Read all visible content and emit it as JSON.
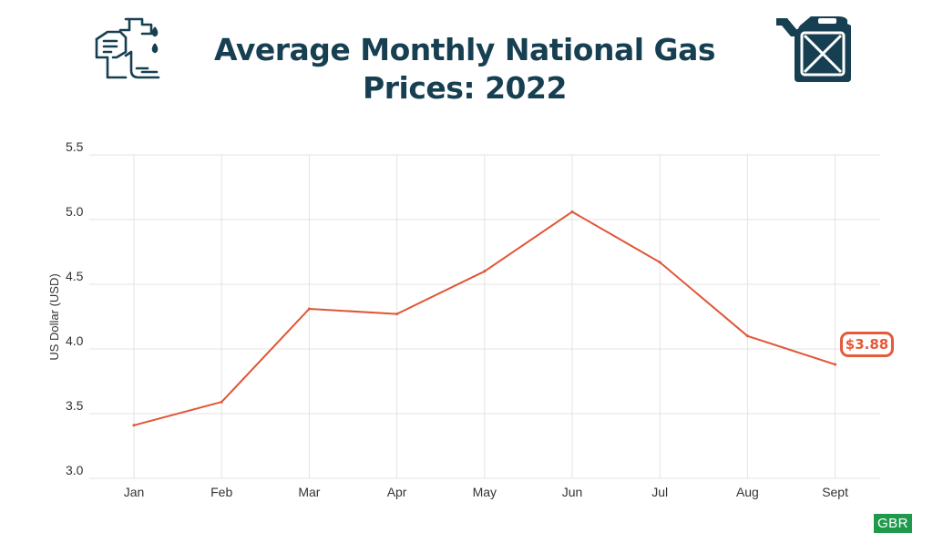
{
  "header": {
    "title_line1": "Average Monthly National Gas",
    "title_line2": "Prices: 2022",
    "left_icon": "gas-pump-icon",
    "right_icon": "jerry-can-icon"
  },
  "colors": {
    "title": "#173f52",
    "line": "#e05636",
    "grid": "#e3e3e3",
    "axis_text": "#333333",
    "logo_bg": "#1f9a4c"
  },
  "chart_data": {
    "type": "line",
    "title": "Average Monthly National Gas Prices: 2022",
    "xlabel": "",
    "ylabel": "US Dollar (USD)",
    "categories": [
      "Jan",
      "Feb",
      "Mar",
      "Apr",
      "May",
      "Jun",
      "Jul",
      "Aug",
      "Sept"
    ],
    "series": [
      {
        "values": [
          3.41,
          3.59,
          4.31,
          4.27,
          4.6,
          5.06,
          4.67,
          4.1,
          3.88
        ]
      }
    ],
    "ylim": [
      3.0,
      5.5
    ],
    "yticks": [
      "3.0",
      "3.5",
      "4.0",
      "4.5",
      "5.0",
      "5.5"
    ],
    "grid": true,
    "annotation": "$3.88"
  },
  "logo": "GBR"
}
